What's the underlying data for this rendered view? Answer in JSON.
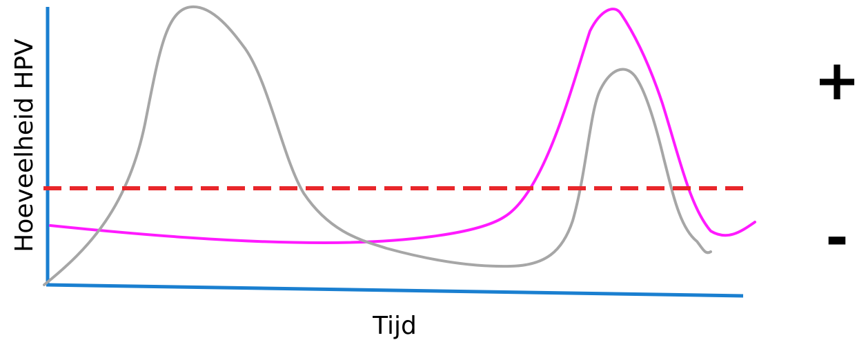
{
  "xlabel": "Tijd",
  "ylabel": "Hoeveelheid HPV",
  "signs": {
    "positive": "+",
    "negative": "-"
  },
  "colors": {
    "axis": "#1a7fd0",
    "threshold": "#e8262a",
    "gray_curve": "#a6a6a6",
    "magenta_curve": "#ff1aff"
  },
  "threshold_style": "dashed"
}
